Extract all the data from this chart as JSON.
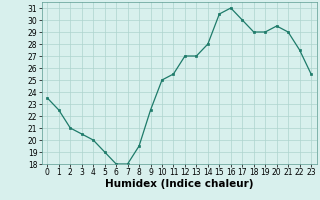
{
  "x": [
    0,
    1,
    2,
    3,
    4,
    5,
    6,
    7,
    8,
    9,
    10,
    11,
    12,
    13,
    14,
    15,
    16,
    17,
    18,
    19,
    20,
    21,
    22,
    23
  ],
  "y": [
    23.5,
    22.5,
    21.0,
    20.5,
    20.0,
    19.0,
    18.0,
    18.0,
    19.5,
    22.5,
    25.0,
    25.5,
    27.0,
    27.0,
    28.0,
    30.5,
    31.0,
    30.0,
    29.0,
    29.0,
    29.5,
    29.0,
    27.5,
    25.5
  ],
  "xlabel": "Humidex (Indice chaleur)",
  "ylim": [
    18,
    31.5
  ],
  "yticks": [
    18,
    19,
    20,
    21,
    22,
    23,
    24,
    25,
    26,
    27,
    28,
    29,
    30,
    31
  ],
  "xticks": [
    0,
    1,
    2,
    3,
    4,
    5,
    6,
    7,
    8,
    9,
    10,
    11,
    12,
    13,
    14,
    15,
    16,
    17,
    18,
    19,
    20,
    21,
    22,
    23
  ],
  "line_color": "#1e7b6a",
  "bg_color": "#d8f0ed",
  "grid_color": "#aed4ce",
  "xlabel_fontsize": 7.5,
  "tick_fontsize": 5.5
}
